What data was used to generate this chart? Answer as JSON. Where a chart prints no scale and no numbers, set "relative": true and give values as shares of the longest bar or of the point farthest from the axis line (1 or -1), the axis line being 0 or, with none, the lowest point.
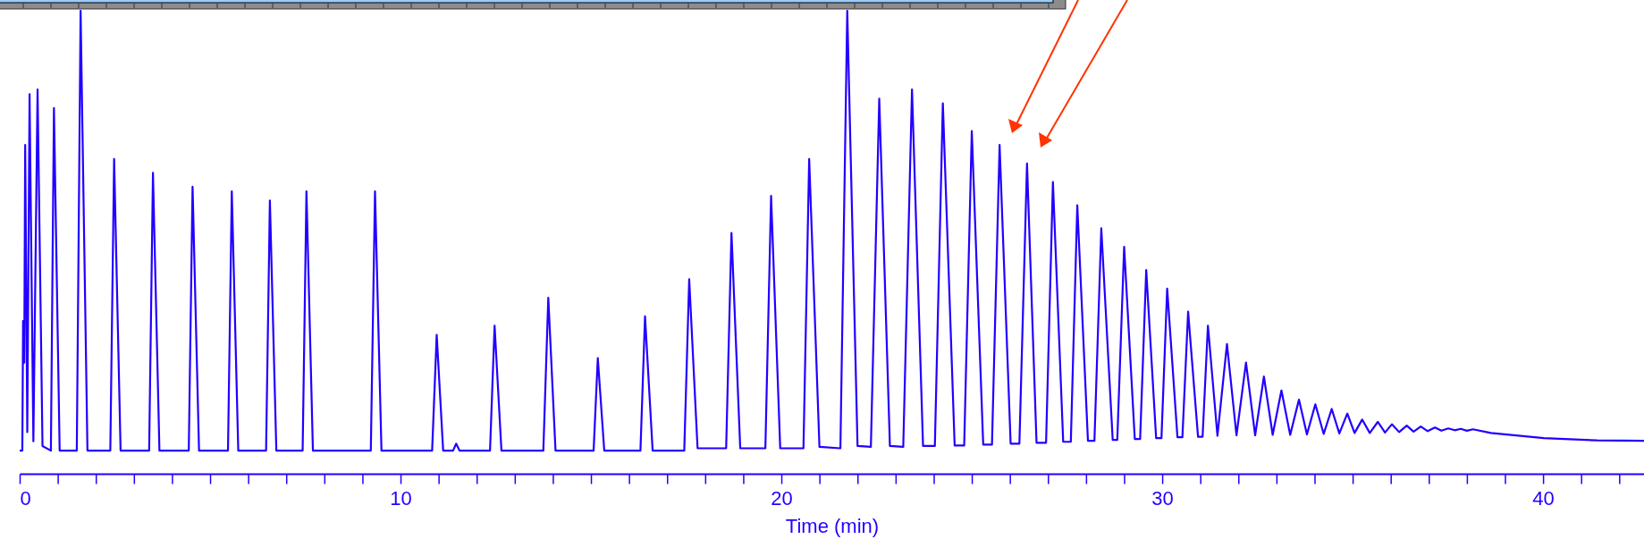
{
  "chart_data": {
    "type": "line",
    "xlabel": "Time (min)",
    "relative": true,
    "xlim": [
      0,
      42.65
    ],
    "xticks": [
      0,
      {
        "value": 1,
        "label": null
      },
      {
        "value": 2,
        "label": null
      },
      {
        "value": 3,
        "label": null
      },
      {
        "value": 4,
        "label": null
      },
      {
        "value": 5,
        "label": null
      },
      {
        "value": 6,
        "label": null
      },
      {
        "value": 7,
        "label": null
      },
      {
        "value": 8,
        "label": null
      },
      {
        "value": 9,
        "label": null
      },
      10,
      {
        "value": 11,
        "label": null
      },
      {
        "value": 12,
        "label": null
      },
      {
        "value": 13,
        "label": null
      },
      {
        "value": 14,
        "label": null
      },
      {
        "value": 15,
        "label": null
      },
      {
        "value": 16,
        "label": null
      },
      {
        "value": 17,
        "label": null
      },
      {
        "value": 18,
        "label": null
      },
      {
        "value": 19,
        "label": null
      },
      20,
      {
        "value": 21,
        "label": null
      },
      {
        "value": 22,
        "label": null
      },
      {
        "value": 23,
        "label": null
      },
      {
        "value": 24,
        "label": null
      },
      {
        "value": 25,
        "label": null
      },
      {
        "value": 26,
        "label": null
      },
      {
        "value": 27,
        "label": null
      },
      {
        "value": 28,
        "label": null
      },
      {
        "value": 29,
        "label": null
      },
      30,
      {
        "value": 31,
        "label": null
      },
      {
        "value": 32,
        "label": null
      },
      {
        "value": 33,
        "label": null
      },
      {
        "value": 34,
        "label": null
      },
      {
        "value": 35,
        "label": null
      },
      {
        "value": 36,
        "label": null
      },
      {
        "value": 37,
        "label": null
      },
      {
        "value": 38,
        "label": null
      },
      {
        "value": 39,
        "label": null
      },
      40,
      {
        "value": 41,
        "label": null
      },
      {
        "value": 42,
        "label": null
      }
    ],
    "x": [
      0,
      0.07,
      0.09,
      0.12,
      0.145,
      0.2,
      0.26,
      0.36,
      0.47,
      0.6,
      0.82,
      0.9,
      1.05,
      1.5,
      1.6,
      1.78,
      2.38,
      2.48,
      2.65,
      3.4,
      3.5,
      3.67,
      4.44,
      4.54,
      4.71,
      5.47,
      5.57,
      5.74,
      6.47,
      6.57,
      6.74,
      7.43,
      7.53,
      7.7,
      9.22,
      9.33,
      9.5,
      10.83,
      10.95,
      11.12,
      11.38,
      11.46,
      11.55,
      12.35,
      12.47,
      12.65,
      13.75,
      13.88,
      14.07,
      15.07,
      15.18,
      15.35,
      16.3,
      16.42,
      16.62,
      17.45,
      17.58,
      17.8,
      18.55,
      18.69,
      18.92,
      19.58,
      19.73,
      19.97,
      20.58,
      20.73,
      21.0,
      21.55,
      21.73,
      22.0,
      22.35,
      22.57,
      22.85,
      23.2,
      23.43,
      23.72,
      24.03,
      24.24,
      24.55,
      24.8,
      25.0,
      25.3,
      25.53,
      25.73,
      26.02,
      26.25,
      26.45,
      26.7,
      26.95,
      27.13,
      27.4,
      27.6,
      27.77,
      28.05,
      28.22,
      28.4,
      28.7,
      28.82,
      29.0,
      29.28,
      29.42,
      29.58,
      29.84,
      29.98,
      30.13,
      30.4,
      30.53,
      30.68,
      30.94,
      31.06,
      31.2,
      31.45,
      31.7,
      31.95,
      32.2,
      32.44,
      32.67,
      32.9,
      33.13,
      33.36,
      33.59,
      33.8,
      34.02,
      34.24,
      34.45,
      34.65,
      34.86,
      35.05,
      35.25,
      35.45,
      35.66,
      35.85,
      36.03,
      36.22,
      36.42,
      36.6,
      36.79,
      36.97,
      37.16,
      37.33,
      37.51,
      37.68,
      37.84,
      38.0,
      38.16,
      38.63,
      40.02,
      41.42,
      42.65
    ],
    "series": [
      {
        "color": "#2200ff",
        "values": [
          0.05,
          0.05,
          0.33,
          0.24,
          0.71,
          0.09,
          0.82,
          0.07,
          0.83,
          0.06,
          0.05,
          0.79,
          0.05,
          0.05,
          1,
          0.05,
          0.05,
          0.68,
          0.05,
          0.05,
          0.65,
          0.05,
          0.05,
          0.62,
          0.05,
          0.05,
          0.61,
          0.05,
          0.05,
          0.59,
          0.05,
          0.05,
          0.61,
          0.05,
          0.05,
          0.61,
          0.05,
          0.05,
          0.3,
          0.05,
          0.05,
          0.065,
          0.05,
          0.05,
          0.32,
          0.05,
          0.05,
          0.38,
          0.05,
          0.05,
          0.25,
          0.05,
          0.05,
          0.34,
          0.05,
          0.05,
          0.42,
          0.055,
          0.055,
          0.52,
          0.055,
          0.055,
          0.6,
          0.055,
          0.055,
          0.68,
          0.058,
          0.055,
          1,
          0.06,
          0.058,
          0.81,
          0.06,
          0.058,
          0.83,
          0.06,
          0.06,
          0.8,
          0.061,
          0.061,
          0.74,
          0.063,
          0.063,
          0.71,
          0.065,
          0.065,
          0.67,
          0.067,
          0.067,
          0.63,
          0.069,
          0.069,
          0.58,
          0.071,
          0.071,
          0.53,
          0.073,
          0.073,
          0.49,
          0.075,
          0.075,
          0.44,
          0.077,
          0.077,
          0.4,
          0.079,
          0.079,
          0.35,
          0.08,
          0.08,
          0.32,
          0.082,
          0.28,
          0.083,
          0.24,
          0.083,
          0.21,
          0.084,
          0.18,
          0.084,
          0.16,
          0.085,
          0.15,
          0.086,
          0.14,
          0.087,
          0.13,
          0.088,
          0.117,
          0.088,
          0.112,
          0.089,
          0.107,
          0.09,
          0.104,
          0.091,
          0.102,
          0.092,
          0.1,
          0.093,
          0.098,
          0.094,
          0.097,
          0.093,
          0.096,
          0.088,
          0.077,
          0.072,
          0.071
        ]
      }
    ]
  }
}
